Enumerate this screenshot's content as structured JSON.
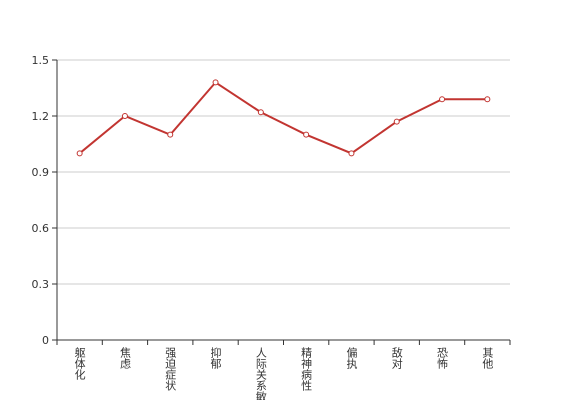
{
  "chart_data": {
    "type": "line",
    "categories": [
      "躯体化",
      "焦虑",
      "强迫症状",
      "抑郁",
      "人际关系敏感",
      "精神病性",
      "偏执",
      "敌对",
      "恐怖",
      "其他"
    ],
    "series": [
      {
        "color": "#c23531",
        "values": [
          1.0,
          1.2,
          1.1,
          1.38,
          1.22,
          1.1,
          1.0,
          1.17,
          1.29,
          1.29
        ]
      }
    ],
    "ylim": [
      0,
      1.5
    ],
    "yticks": [
      0,
      0.3,
      0.6,
      0.9,
      1.2,
      1.5
    ],
    "grid": true
  }
}
